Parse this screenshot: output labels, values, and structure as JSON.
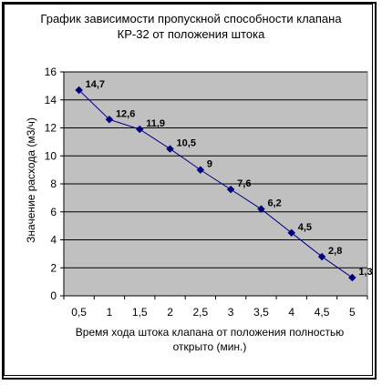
{
  "chart_data": {
    "type": "line",
    "title_lines": [
      "График  зависимости пропускной способности клапана",
      "КР-32 от положения штока"
    ],
    "xlabel_lines": [
      "Время хода штока клапана от положения полностью",
      "открыто (мин.)"
    ],
    "ylabel": "Значение расхода (м3/ч)",
    "categories": [
      "0,5",
      "1",
      "1,5",
      "2",
      "2,5",
      "3",
      "3,5",
      "4",
      "4,5",
      "5"
    ],
    "x": [
      0.5,
      1,
      1.5,
      2,
      2.5,
      3,
      3.5,
      4,
      4.5,
      5
    ],
    "values": [
      14.7,
      12.6,
      11.9,
      10.5,
      9,
      7.6,
      6.2,
      4.5,
      2.8,
      1.3
    ],
    "value_labels": [
      "14,7",
      "12,6",
      "11,9",
      "10,5",
      "9",
      "7,6",
      "6,2",
      "4,5",
      "2,8",
      "1,3"
    ],
    "yticks": [
      "0",
      "2",
      "4",
      "6",
      "8",
      "10",
      "12",
      "14",
      "16"
    ],
    "ylim": [
      0,
      16
    ],
    "grid": true,
    "colors": {
      "plot_bg": "#c0c0c0",
      "series": "#000080",
      "grid": "#000000"
    }
  }
}
